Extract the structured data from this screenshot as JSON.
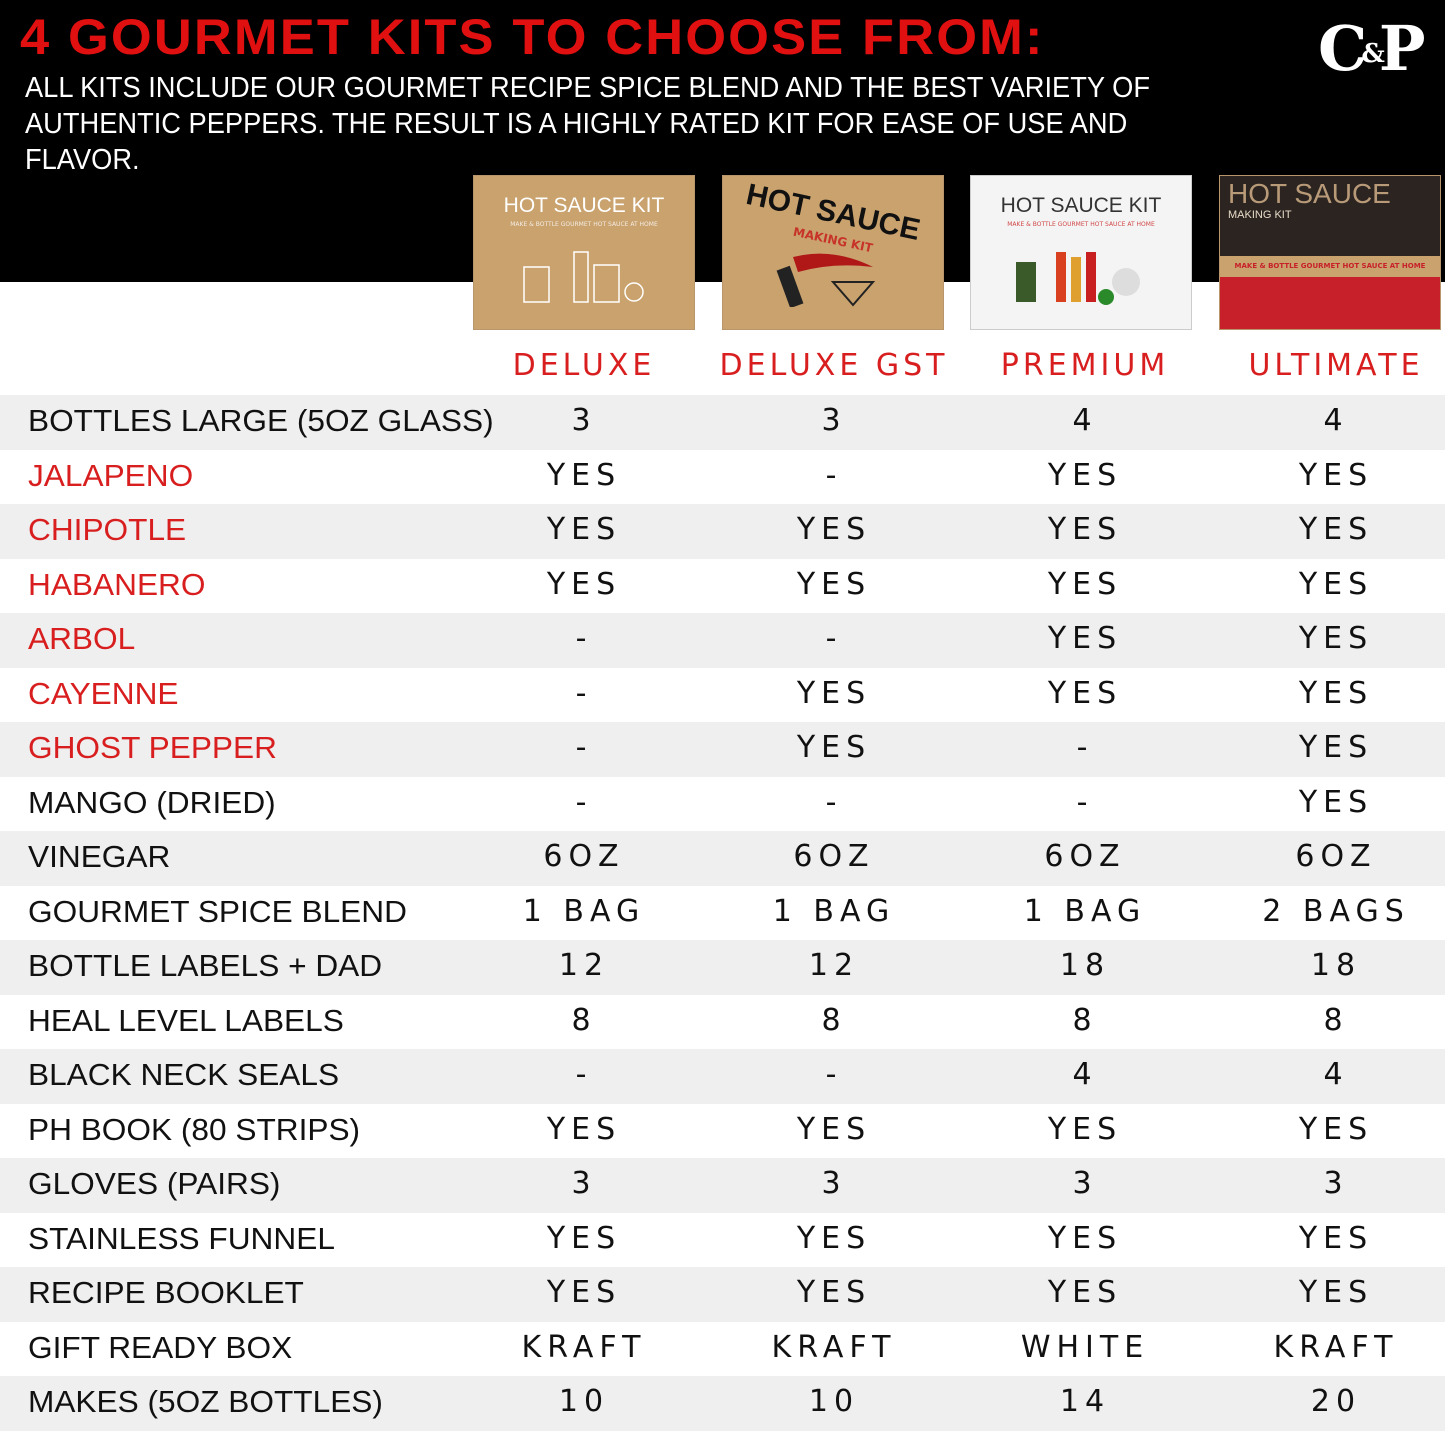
{
  "header": {
    "title": "4 GOURMET KITS TO CHOOSE FROM:",
    "subtitle": "ALL KITS INCLUDE OUR GOURMET RECIPE SPICE BLEND AND THE BEST VARIETY OF AUTHENTIC PEPPERS. THE RESULT IS A HIGHLY RATED KIT FOR EASE OF USE AND FLAVOR.",
    "logo": "C&P"
  },
  "kits": [
    {
      "name": "DELUXE",
      "box_title": "HOT SAUCE KIT",
      "box_sub": "MAKE & BOTTLE GOURMET HOT SAUCE AT HOME",
      "box_color": "kraft"
    },
    {
      "name": "DELUXE GST",
      "box_title": "HOT SAUCE",
      "box_sub": "MAKING KIT",
      "box_color": "kraft"
    },
    {
      "name": "PREMIUM",
      "box_title": "HOT SAUCE KIT",
      "box_sub": "MAKE & BOTTLE GOURMET HOT SAUCE AT HOME",
      "box_color": "white"
    },
    {
      "name": "ULTIMATE",
      "box_title": "HOT SAUCE",
      "box_sub": "MAKING KIT",
      "box_extra": "MAKE & BOTTLE GOURMET HOT SAUCE AT HOME",
      "box_color": "kraft"
    }
  ],
  "colors": {
    "accent": "#d81e1e",
    "header_bg": "#000000",
    "row_alt": "#efefef"
  },
  "rows": [
    {
      "label": "BOTTLES LARGE (5OZ GLASS)",
      "pepper": false,
      "values": [
        "3",
        "3",
        "4",
        "4"
      ]
    },
    {
      "label": "JALAPENO",
      "pepper": true,
      "values": [
        "YES",
        "-",
        "YES",
        "YES"
      ]
    },
    {
      "label": "CHIPOTLE",
      "pepper": true,
      "values": [
        "YES",
        "YES",
        "YES",
        "YES"
      ]
    },
    {
      "label": "HABANERO",
      "pepper": true,
      "values": [
        "YES",
        "YES",
        "YES",
        "YES"
      ]
    },
    {
      "label": "ARBOL",
      "pepper": true,
      "values": [
        "-",
        "-",
        "YES",
        "YES"
      ]
    },
    {
      "label": "CAYENNE",
      "pepper": true,
      "values": [
        "-",
        "YES",
        "YES",
        "YES"
      ]
    },
    {
      "label": "GHOST PEPPER",
      "pepper": true,
      "values": [
        "-",
        "YES",
        "-",
        "YES"
      ]
    },
    {
      "label": "MANGO (DRIED)",
      "pepper": false,
      "values": [
        "-",
        "-",
        "-",
        "YES"
      ]
    },
    {
      "label": "VINEGAR",
      "pepper": false,
      "values": [
        "6OZ",
        "6OZ",
        "6OZ",
        "6OZ"
      ]
    },
    {
      "label": "GOURMET SPICE BLEND",
      "pepper": false,
      "values": [
        "1 BAG",
        "1 BAG",
        "1 BAG",
        "2 BAGS"
      ]
    },
    {
      "label": "BOTTLE LABELS + DAD",
      "pepper": false,
      "values": [
        "12",
        "12",
        "18",
        "18"
      ]
    },
    {
      "label": "HEAL LEVEL LABELS",
      "pepper": false,
      "values": [
        "8",
        "8",
        "8",
        "8"
      ]
    },
    {
      "label": "BLACK NECK SEALS",
      "pepper": false,
      "values": [
        "-",
        "-",
        "4",
        "4"
      ]
    },
    {
      "label": "PH BOOK (80 STRIPS)",
      "pepper": false,
      "values": [
        "YES",
        "YES",
        "YES",
        "YES"
      ]
    },
    {
      "label": "GLOVES (PAIRS)",
      "pepper": false,
      "values": [
        "3",
        "3",
        "3",
        "3"
      ]
    },
    {
      "label": "STAINLESS FUNNEL",
      "pepper": false,
      "values": [
        "YES",
        "YES",
        "YES",
        "YES"
      ]
    },
    {
      "label": "RECIPE BOOKLET",
      "pepper": false,
      "values": [
        "YES",
        "YES",
        "YES",
        "YES"
      ]
    },
    {
      "label": "GIFT READY BOX",
      "pepper": false,
      "values": [
        "KRAFT",
        "KRAFT",
        "WHITE",
        "KRAFT"
      ]
    },
    {
      "label": "MAKES (5OZ BOTTLES)",
      "pepper": false,
      "values": [
        "10",
        "10",
        "14",
        "20"
      ]
    }
  ]
}
